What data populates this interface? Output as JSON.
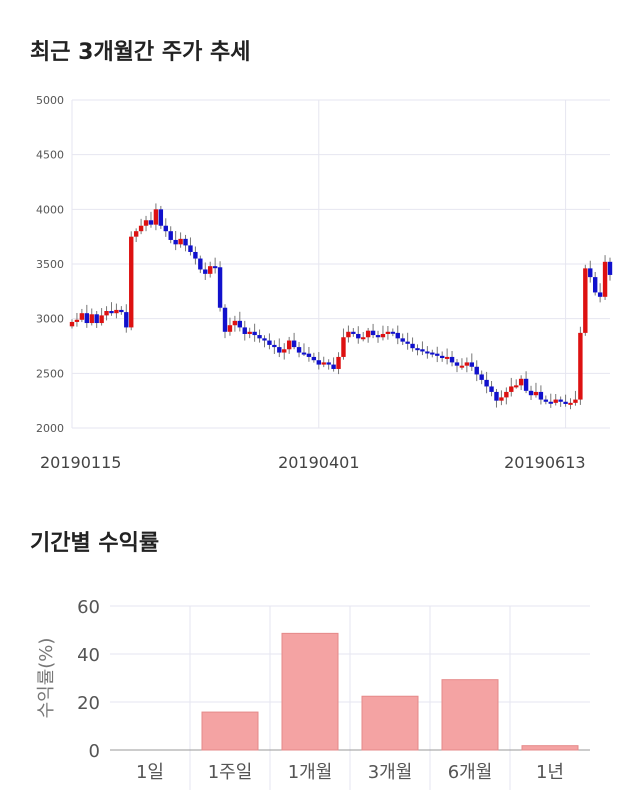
{
  "titles": {
    "price_trend": "최근 3개월간 주가 추세",
    "returns": "기간별 수익률"
  },
  "colors": {
    "up": "#dd1111",
    "down": "#1111cc",
    "bar": "#f4a3a3",
    "bar_border": "#e58a8a",
    "grid": "#e6e6f0"
  },
  "chart_data": [
    {
      "type": "candlestick",
      "title": "최근 3개월간 주가 추세",
      "ylim": [
        2000,
        5000
      ],
      "yticks": [
        "5000",
        "4500",
        "4000",
        "3500",
        "3000",
        "2500",
        "2000"
      ],
      "ytick_values": [
        5000,
        4500,
        4000,
        3500,
        3000,
        2500,
        2000
      ],
      "x_labels": [
        "20190115",
        "20190401",
        "20190613"
      ],
      "x_label_index": [
        0,
        50,
        100
      ],
      "close": [
        2970,
        2990,
        3050,
        2960,
        3040,
        2960,
        3030,
        3070,
        3050,
        3080,
        3060,
        2920,
        3750,
        3800,
        3850,
        3900,
        3860,
        4000,
        3850,
        3800,
        3720,
        3680,
        3730,
        3670,
        3610,
        3550,
        3450,
        3410,
        3480,
        3470,
        3100,
        2880,
        2940,
        2980,
        2920,
        2860,
        2880,
        2850,
        2820,
        2800,
        2760,
        2740,
        2690,
        2720,
        2800,
        2740,
        2690,
        2680,
        2650,
        2620,
        2580,
        2600,
        2580,
        2540,
        2650,
        2830,
        2880,
        2860,
        2820,
        2830,
        2890,
        2850,
        2830,
        2860,
        2880,
        2870,
        2820,
        2790,
        2770,
        2730,
        2720,
        2700,
        2690,
        2680,
        2660,
        2640,
        2650,
        2600,
        2570,
        2570,
        2600,
        2560,
        2490,
        2440,
        2380,
        2330,
        2250,
        2280,
        2330,
        2380,
        2390,
        2450,
        2340,
        2300,
        2330,
        2260,
        2240,
        2230,
        2260,
        2240,
        2220,
        2230,
        2260,
        2870,
        3460,
        3380,
        3240,
        3200,
        3520,
        3400
      ]
    },
    {
      "type": "bar",
      "title": "기간별 수익률",
      "ylabel": "수익률(%)",
      "ylim": [
        0,
        60
      ],
      "yticks": [
        "60",
        "40",
        "20",
        "0"
      ],
      "ytick_values": [
        60,
        40,
        20,
        0
      ],
      "categories": [
        "1일",
        "1주일",
        "1개월",
        "3개월",
        "6개월",
        "1년"
      ],
      "values": [
        0,
        15.8,
        48.6,
        22.4,
        29.3,
        1.8
      ]
    }
  ]
}
